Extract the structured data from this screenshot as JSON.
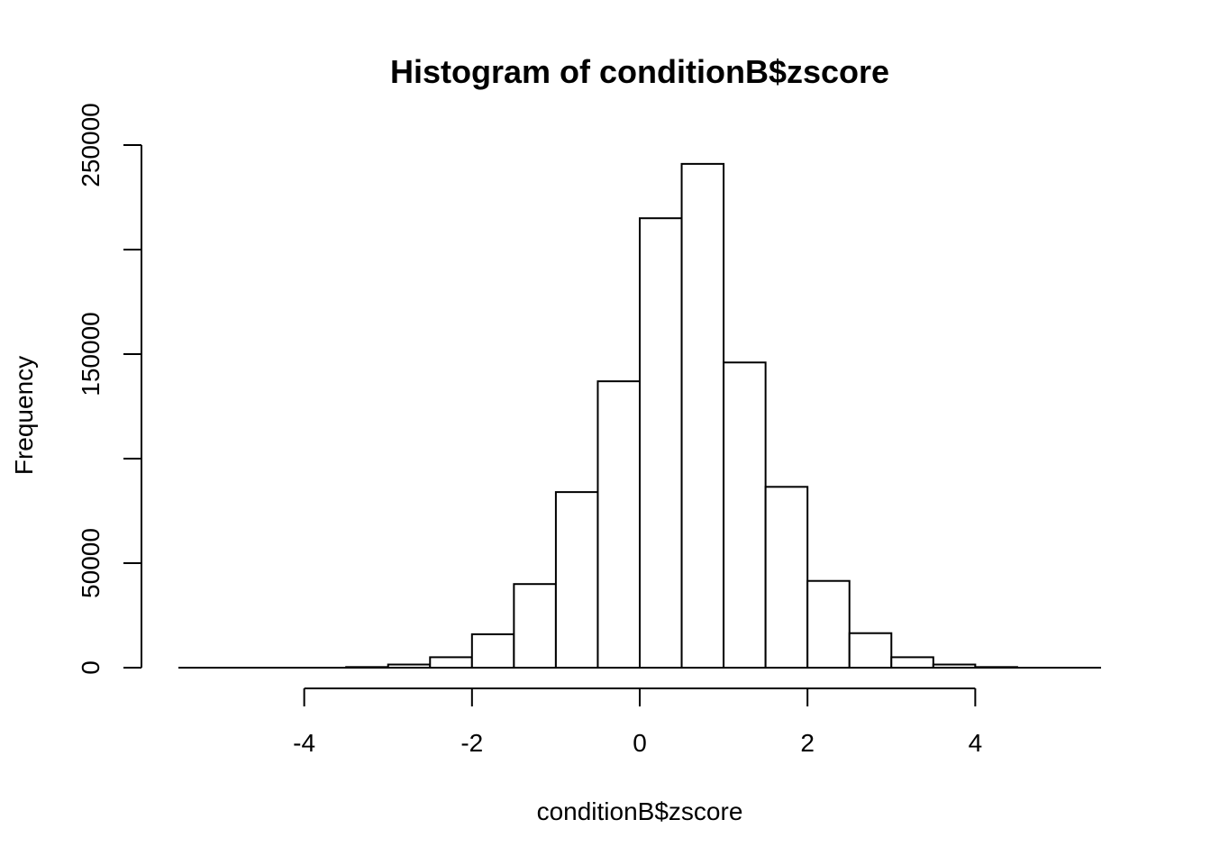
{
  "chart_data": {
    "type": "bar",
    "title": "Histogram of conditionB$zscore",
    "xlabel": "conditionB$zscore",
    "ylabel": "Frequency",
    "bin_edges": [
      -5.5,
      -5,
      -4.5,
      -4,
      -3.5,
      -3,
      -2.5,
      -2,
      -1.5,
      -1,
      -0.5,
      0,
      0.5,
      1,
      1.5,
      2,
      2.5,
      3,
      3.5,
      4,
      4.5,
      5,
      5.5
    ],
    "values": [
      0,
      0,
      0,
      0,
      300,
      1500,
      5000,
      16000,
      40000,
      84000,
      137000,
      215000,
      241000,
      146000,
      86500,
      41500,
      16500,
      5000,
      1500,
      300,
      0,
      0
    ],
    "x_ticks": [
      -4,
      -2,
      0,
      2,
      4
    ],
    "y_ticks": [
      0,
      50000,
      150000,
      250000
    ],
    "y_minor_ticks": [
      100000,
      200000
    ],
    "xlim": [
      -5.5,
      5.5
    ],
    "ylim": [
      0,
      250000
    ],
    "grid": false,
    "bar_fill": "#ffffff",
    "bar_stroke": "#000000"
  }
}
